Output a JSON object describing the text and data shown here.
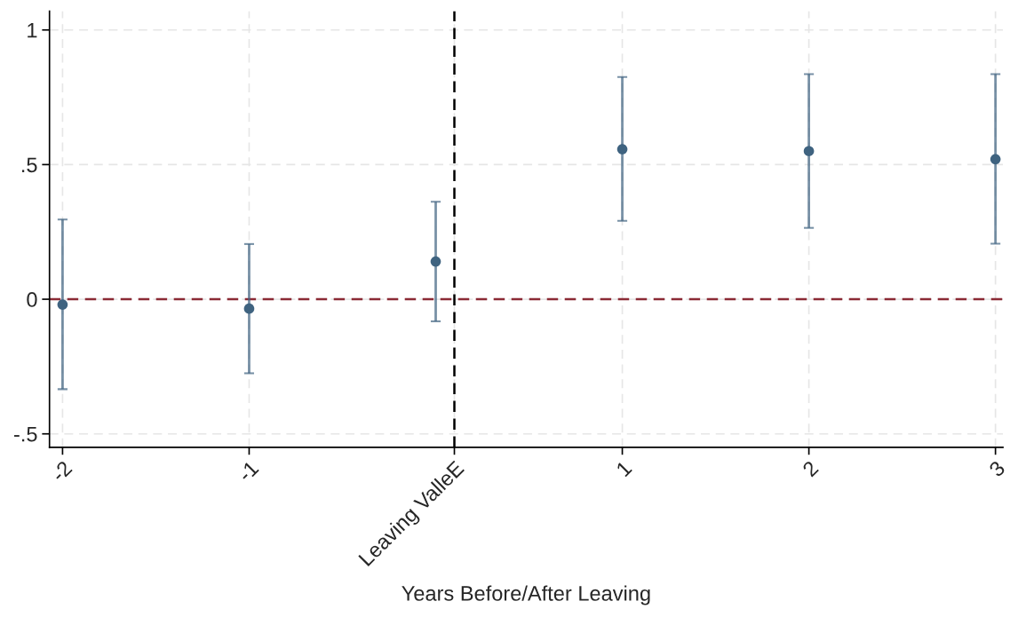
{
  "chart_data": {
    "type": "scatter",
    "xlabel": "Years Before/After Leaving",
    "x": [
      -2,
      -1,
      0,
      1,
      2,
      3
    ],
    "series": [
      {
        "color": "#3f6380",
        "values": [
          -0.02,
          -0.035,
          0.14,
          0.557,
          0.55,
          0.52
        ],
        "errors": [
          [
            -0.334,
            0.296
          ],
          [
            -0.275,
            0.205
          ],
          [
            -0.082,
            0.362
          ],
          [
            0.291,
            0.825
          ],
          [
            0.265,
            0.836
          ],
          [
            0.206,
            0.836
          ]
        ]
      }
    ],
    "xlim": [
      -2.07,
      3.04
    ],
    "ylim": [
      -0.55,
      1.07
    ],
    "xticks": [
      -2,
      -1,
      {
        "value": 0.1,
        "label": "Leaving ValleE"
      },
      1,
      2,
      3
    ],
    "yticks": [
      {
        "value": -0.5,
        "label": "-.5"
      },
      0,
      {
        "value": 0.5,
        "label": ".5"
      },
      1
    ],
    "ref_lines": [
      {
        "axis": "y",
        "value": 0,
        "color": "#8b2a35",
        "line_style": "dashed"
      },
      {
        "axis": "x",
        "value": 0.1,
        "color": "#000000",
        "line_style": "dashed"
      }
    ],
    "grid": true,
    "marker": "circle"
  }
}
